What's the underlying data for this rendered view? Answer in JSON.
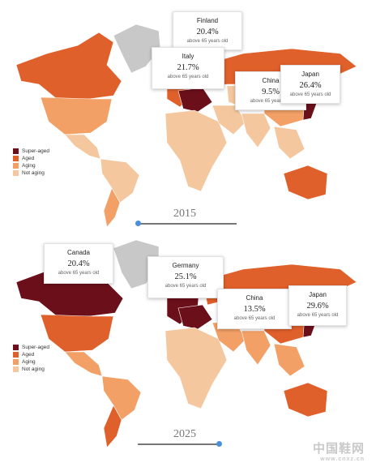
{
  "legend": [
    {
      "label": "Super-aged",
      "color": "#6b0f1a"
    },
    {
      "label": "Aged",
      "color": "#e0602b"
    },
    {
      "label": "Aging",
      "color": "#f2a066"
    },
    {
      "label": "Not aging",
      "color": "#f4c79f"
    }
  ],
  "colors": {
    "no_data": "#c8c8c8",
    "ocean": "#ffffff"
  },
  "maps": [
    {
      "year": "2015",
      "timeline_position": 0.0,
      "callouts": [
        {
          "country": "Finland",
          "value": "20.4%",
          "subtitle": "above 65 years old"
        },
        {
          "country": "Italy",
          "value": "21.7%",
          "subtitle": "above 65 years old"
        },
        {
          "country": "China",
          "value": "9.5%",
          "subtitle": "above 65 years old"
        },
        {
          "country": "Japan",
          "value": "26.4%",
          "subtitle": "above 65 years old"
        }
      ],
      "category_by_region": {
        "north_america": "Aged",
        "usa": "Aging",
        "greenland": "no_data",
        "central_america": "Not aging",
        "south_america": "Not aging",
        "southern_cone": "Aging",
        "europe": "Aged",
        "central_europe": "Super-aged",
        "russia": "Aged",
        "africa": "Not aging",
        "middle_east": "Not aging",
        "central_asia": "Not aging",
        "china": "Aging",
        "india": "Not aging",
        "southeast_asia": "Not aging",
        "japan": "Super-aged",
        "australia": "Aged"
      }
    },
    {
      "year": "2025",
      "timeline_position": 1.0,
      "callouts": [
        {
          "country": "Canada",
          "value": "20.4%",
          "subtitle": "above 65 years old"
        },
        {
          "country": "Germany",
          "value": "25.1%",
          "subtitle": "above 65 years old"
        },
        {
          "country": "China",
          "value": "13.5%",
          "subtitle": "above 65 years old"
        },
        {
          "country": "Japan",
          "value": "29.6%",
          "subtitle": "above 65 years old"
        }
      ],
      "category_by_region": {
        "north_america": "Super-aged",
        "usa": "Aged",
        "greenland": "no_data",
        "central_america": "Aging",
        "south_america": "Aging",
        "southern_cone": "Aged",
        "europe": "Super-aged",
        "central_europe": "Super-aged",
        "russia": "Aged",
        "africa": "Not aging",
        "middle_east": "Aging",
        "central_asia": "Aging",
        "china": "Aged",
        "india": "Aging",
        "southeast_asia": "Aging",
        "japan": "Super-aged",
        "australia": "Aged"
      }
    }
  ],
  "watermark": "中国鞋网",
  "watermark_url": "www.cnxz.cn"
}
